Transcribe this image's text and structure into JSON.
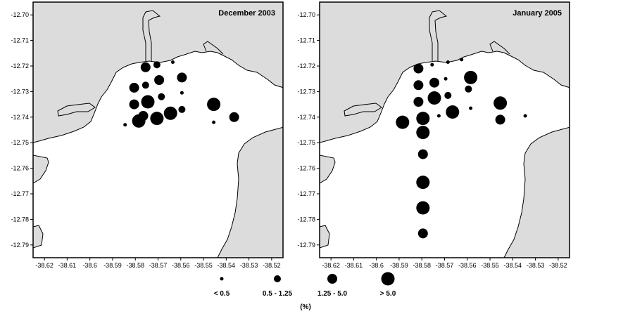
{
  "panels": [
    {
      "title": "December 2003",
      "stations": [
        {
          "lon": -38.5755,
          "lat": -12.7205,
          "cls": 2
        },
        {
          "lon": -38.5705,
          "lat": -12.7195,
          "cls": 1
        },
        {
          "lon": -38.5635,
          "lat": -12.7185,
          "cls": 0
        },
        {
          "lon": -38.5805,
          "lat": -12.7285,
          "cls": 2
        },
        {
          "lon": -38.5755,
          "lat": -12.7275,
          "cls": 1
        },
        {
          "lon": -38.5695,
          "lat": -12.7255,
          "cls": 2
        },
        {
          "lon": -38.5595,
          "lat": -12.7245,
          "cls": 2
        },
        {
          "lon": -38.5595,
          "lat": -12.7305,
          "cls": 0
        },
        {
          "lon": -38.5805,
          "lat": -12.735,
          "cls": 2
        },
        {
          "lon": -38.5745,
          "lat": -12.734,
          "cls": 3
        },
        {
          "lon": -38.5685,
          "lat": -12.732,
          "cls": 1
        },
        {
          "lon": -38.5595,
          "lat": -12.737,
          "cls": 1
        },
        {
          "lon": -38.5765,
          "lat": -12.7395,
          "cls": 2
        },
        {
          "lon": -38.5705,
          "lat": -12.7405,
          "cls": 3
        },
        {
          "lon": -38.5785,
          "lat": -12.7415,
          "cls": 3
        },
        {
          "lon": -38.5645,
          "lat": -12.7385,
          "cls": 3
        },
        {
          "lon": -38.5845,
          "lat": -12.743,
          "cls": 0
        },
        {
          "lon": -38.5455,
          "lat": -12.735,
          "cls": 3
        },
        {
          "lon": -38.5455,
          "lat": -12.742,
          "cls": 0
        },
        {
          "lon": -38.5365,
          "lat": -12.74,
          "cls": 2
        }
      ]
    },
    {
      "title": "January 2005",
      "stations": [
        {
          "lon": -38.5815,
          "lat": -12.721,
          "cls": 2
        },
        {
          "lon": -38.5755,
          "lat": -12.7195,
          "cls": 0
        },
        {
          "lon": -38.5685,
          "lat": -12.7185,
          "cls": 0
        },
        {
          "lon": -38.5625,
          "lat": -12.7175,
          "cls": 0
        },
        {
          "lon": -38.5585,
          "lat": -12.7245,
          "cls": 3
        },
        {
          "lon": -38.5815,
          "lat": -12.7275,
          "cls": 2
        },
        {
          "lon": -38.5745,
          "lat": -12.7265,
          "cls": 2
        },
        {
          "lon": -38.5695,
          "lat": -12.725,
          "cls": 0
        },
        {
          "lon": -38.5595,
          "lat": -12.729,
          "cls": 1
        },
        {
          "lon": -38.5815,
          "lat": -12.734,
          "cls": 2
        },
        {
          "lon": -38.5745,
          "lat": -12.7325,
          "cls": 3
        },
        {
          "lon": -38.5685,
          "lat": -12.7315,
          "cls": 1
        },
        {
          "lon": -38.5795,
          "lat": -12.7405,
          "cls": 3
        },
        {
          "lon": -38.5725,
          "lat": -12.7395,
          "cls": 0
        },
        {
          "lon": -38.5665,
          "lat": -12.738,
          "cls": 3
        },
        {
          "lon": -38.5585,
          "lat": -12.7365,
          "cls": 0
        },
        {
          "lon": -38.5885,
          "lat": -12.742,
          "cls": 3
        },
        {
          "lon": -38.5795,
          "lat": -12.746,
          "cls": 3
        },
        {
          "lon": -38.5795,
          "lat": -12.7545,
          "cls": 2
        },
        {
          "lon": -38.5795,
          "lat": -12.7655,
          "cls": 3
        },
        {
          "lon": -38.5795,
          "lat": -12.7755,
          "cls": 3
        },
        {
          "lon": -38.5795,
          "lat": -12.7855,
          "cls": 2
        },
        {
          "lon": -38.5455,
          "lat": -12.7345,
          "cls": 3
        },
        {
          "lon": -38.5455,
          "lat": -12.741,
          "cls": 2
        },
        {
          "lon": -38.5345,
          "lat": -12.7395,
          "cls": 0
        }
      ]
    }
  ],
  "axes": {
    "lon_range": [
      -38.625,
      -38.515
    ],
    "lat_range": [
      -12.795,
      -12.695
    ],
    "lon_ticks": [
      "-38.62",
      "-38.61",
      "-38.6",
      "-38.59",
      "-38.58",
      "-38.57",
      "-38.56",
      "-38.55",
      "-38.54",
      "-38.53",
      "-38.52"
    ],
    "lat_ticks": [
      "-12.70",
      "-12.71",
      "-12.72",
      "-12.73",
      "-12.74",
      "-12.75",
      "-12.76",
      "-12.77",
      "-12.78",
      "-12.79"
    ]
  },
  "legend": {
    "classes": [
      "< 0.5",
      "0.5 - 1.25",
      "1.25 - 5.0",
      "> 5.0"
    ],
    "unit": "(%)"
  },
  "colors": {
    "land": "#dcdcdc",
    "water": "#ffffff",
    "marker": "#000000"
  }
}
